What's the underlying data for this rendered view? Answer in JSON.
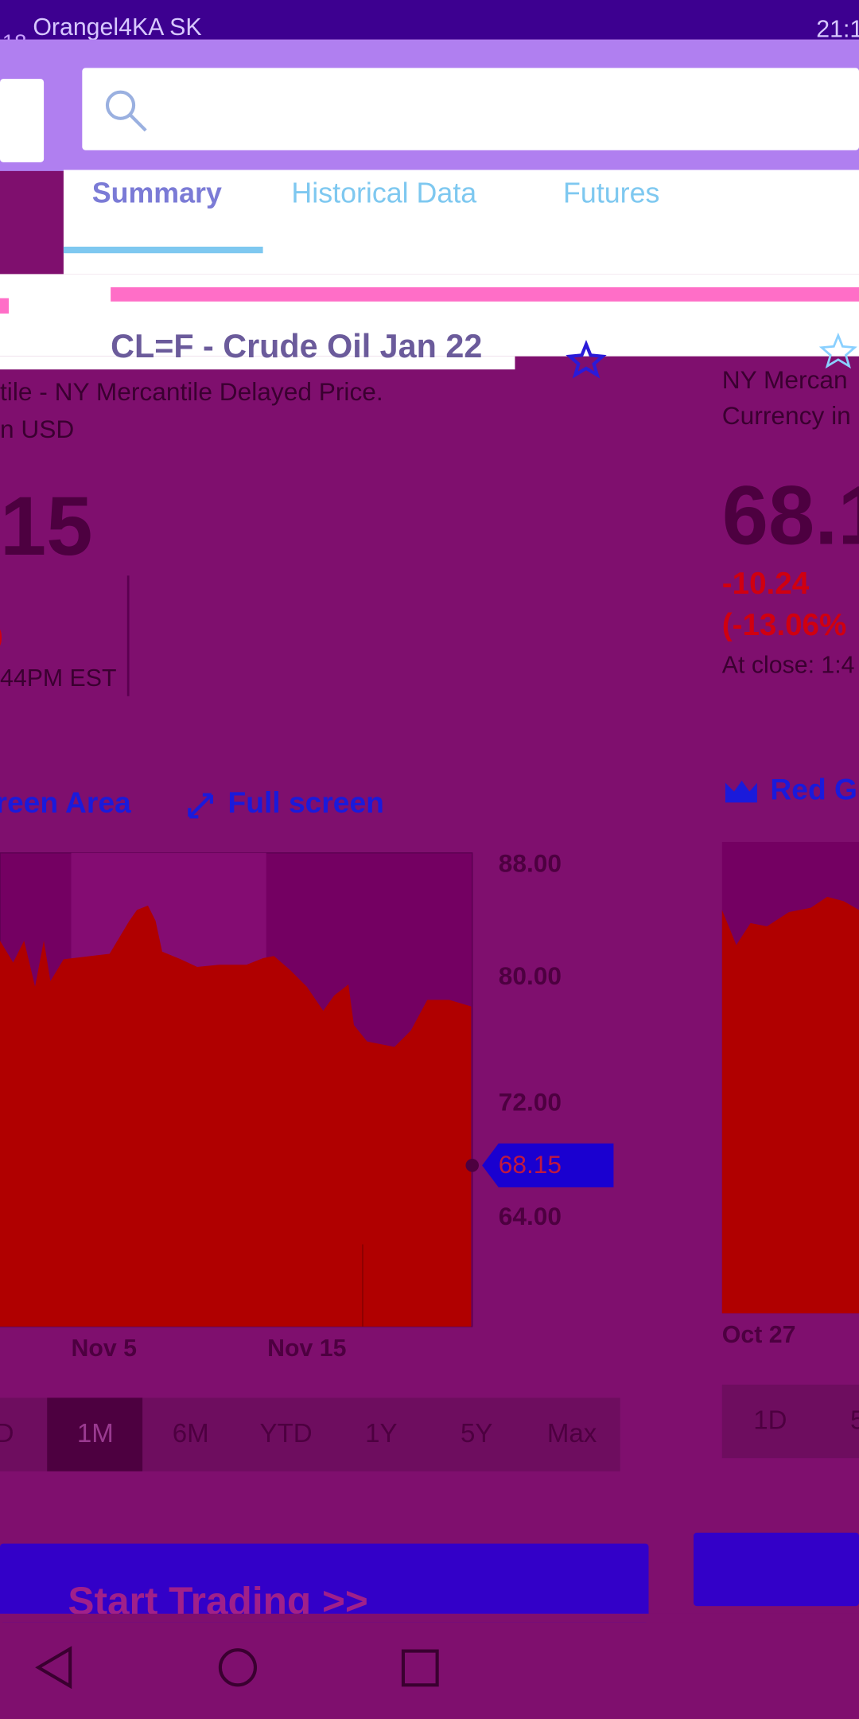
{
  "status_bar": {
    "left_time": "18",
    "carrier": "Orangel4KA SK",
    "time": "21:1"
  },
  "tabs": [
    "Summary",
    "Historical Data",
    "Futures"
  ],
  "quote": {
    "title": "CL=F - Crude Oil Jan 22",
    "exchange": "tile - NY Mercantile Delayed Price.",
    "currency": "n USD",
    "price": "15",
    "change": "0",
    "time": "44PM EST"
  },
  "quote_right": {
    "exchange": "NY Mercan",
    "currency": "Currency in",
    "price": "68.1",
    "change": "-10.24",
    "change_pct": "(-13.06%",
    "time": "At close: 1:4"
  },
  "chart_controls": {
    "area": "reen Area",
    "fullscreen": "Full screen",
    "right_area": "Red Gr"
  },
  "chart": {
    "yticks": [
      "88.00",
      "80.00",
      "72.00",
      "64.00"
    ],
    "current": "68.15",
    "xticks": [
      "Nov 5",
      "Nov 15"
    ],
    "right_xtick": "Oct 27"
  },
  "ranges": [
    "D",
    "1M",
    "6M",
    "YTD",
    "1Y",
    "5Y",
    "Max"
  ],
  "right_ranges": [
    "1D",
    "5"
  ],
  "cta": "Start Trading >>"
}
